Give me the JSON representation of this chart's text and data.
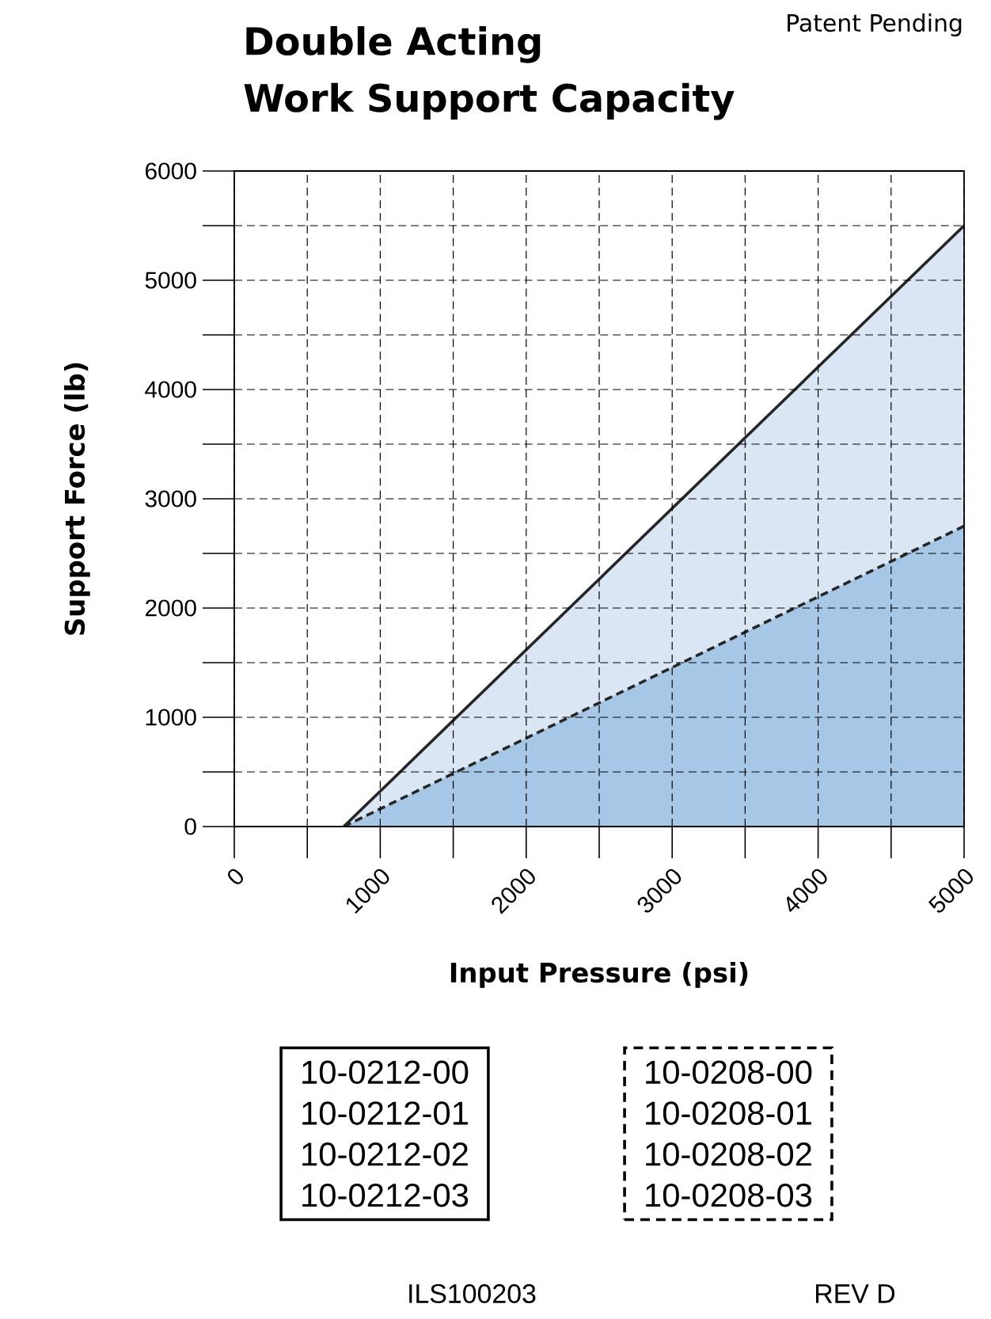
{
  "chart_data": {
    "type": "area",
    "title": "Double Acting",
    "subtitle": "Work Support Capacity",
    "xlabel": "Input Pressure (psi)",
    "ylabel": "Support Force (lb)",
    "x": [
      750,
      5000
    ],
    "series": [
      {
        "color": "#dae6f3",
        "line_style": "solid",
        "values": [
          0,
          5500
        ]
      },
      {
        "color": "#a7c7e7",
        "line_style": "dashed",
        "values": [
          0,
          2750
        ]
      }
    ],
    "xlim": [
      0,
      5000
    ],
    "ylim": [
      0,
      6000
    ],
    "xticks": [
      0,
      {
        "value": 500,
        "label": null
      },
      1000,
      {
        "value": 1500,
        "label": null
      },
      2000,
      {
        "value": 2500,
        "label": null
      },
      3000,
      {
        "value": 3500,
        "label": null
      },
      4000,
      {
        "value": 4500,
        "label": null
      },
      5000
    ],
    "yticks": [
      0,
      {
        "value": 500,
        "label": null
      },
      1000,
      {
        "value": 1500,
        "label": null
      },
      2000,
      {
        "value": 2500,
        "label": null
      },
      3000,
      {
        "value": 3500,
        "label": null
      },
      4000,
      {
        "value": 4500,
        "label": null
      },
      5000,
      {
        "value": 5500,
        "label": null
      },
      6000
    ],
    "grid": true,
    "annotations": [
      "Patent Pending",
      "10-0212-00",
      "10-0212-01",
      "10-0212-02",
      "10-0212-03",
      "10-0208-00",
      "10-0208-01",
      "10-0208-02",
      "10-0208-03",
      "ILS100203",
      "REV D"
    ]
  }
}
